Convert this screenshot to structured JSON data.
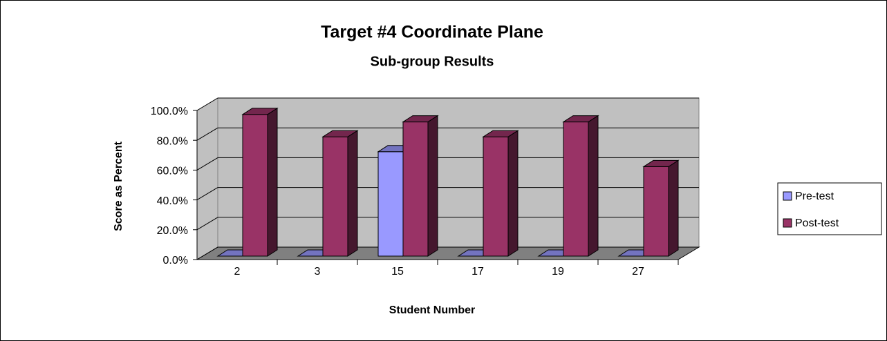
{
  "chart_data": {
    "type": "bar3d",
    "title": "Target #4 Coordinate Plane",
    "subtitle": "Sub-group Results",
    "y_label": "Score as Percent",
    "x_label": "Student Number",
    "categories": [
      "2",
      "3",
      "15",
      "17",
      "19",
      "27"
    ],
    "series": [
      {
        "name": "Pre-test",
        "color": "#9999ff",
        "values": [
          0,
          0,
          70,
          0,
          0,
          0
        ]
      },
      {
        "name": "Post-test",
        "color": "#993366",
        "values": [
          95,
          80,
          90,
          80,
          90,
          60
        ]
      }
    ],
    "ylim": [
      0,
      100
    ],
    "yticks": [
      {
        "value": 0,
        "label": "0.0%"
      },
      {
        "value": 20,
        "label": "20.0%"
      },
      {
        "value": 40,
        "label": "40.0%"
      },
      {
        "value": 60,
        "label": "60.0%"
      },
      {
        "value": 80,
        "label": "80.0%"
      },
      {
        "value": 100,
        "label": "100.0%"
      }
    ],
    "grid": true,
    "legend": "right"
  }
}
